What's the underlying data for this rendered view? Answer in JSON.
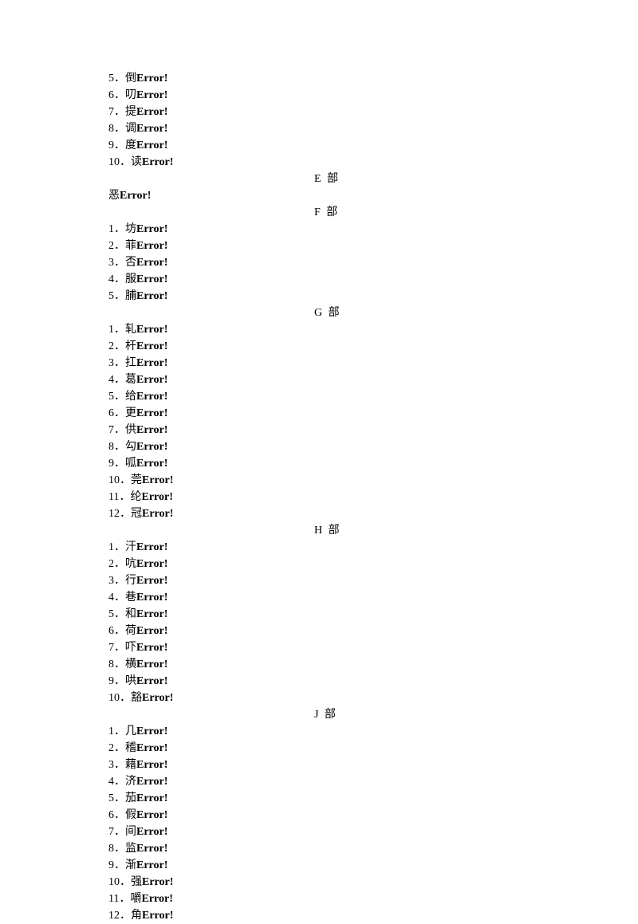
{
  "error_text": "Error!",
  "sections": {
    "d_tail": {
      "start": 5,
      "items": [
        "倒",
        "叨",
        "提",
        "调",
        "度",
        "读"
      ]
    },
    "e": {
      "header": "E 部",
      "single": "恶"
    },
    "f": {
      "header": "F 部",
      "items": [
        "坊",
        "菲",
        "否",
        "服",
        "脯"
      ]
    },
    "g": {
      "header": "G 部",
      "items": [
        "轧",
        "杆",
        "扛",
        "葛",
        "给",
        "更",
        "供",
        "勾",
        "呱",
        "莞",
        "纶",
        "冠"
      ]
    },
    "h": {
      "header": "H 部",
      "items": [
        "汗",
        "吭",
        "行",
        "巷",
        "和",
        "荷",
        "吓",
        "横",
        "哄",
        "豁"
      ]
    },
    "j": {
      "header": "J 部",
      "items": [
        "几",
        "稽",
        "藉",
        "济",
        "茄",
        "假",
        "间",
        "监",
        "渐",
        "强",
        "嚼",
        "角"
      ]
    }
  }
}
